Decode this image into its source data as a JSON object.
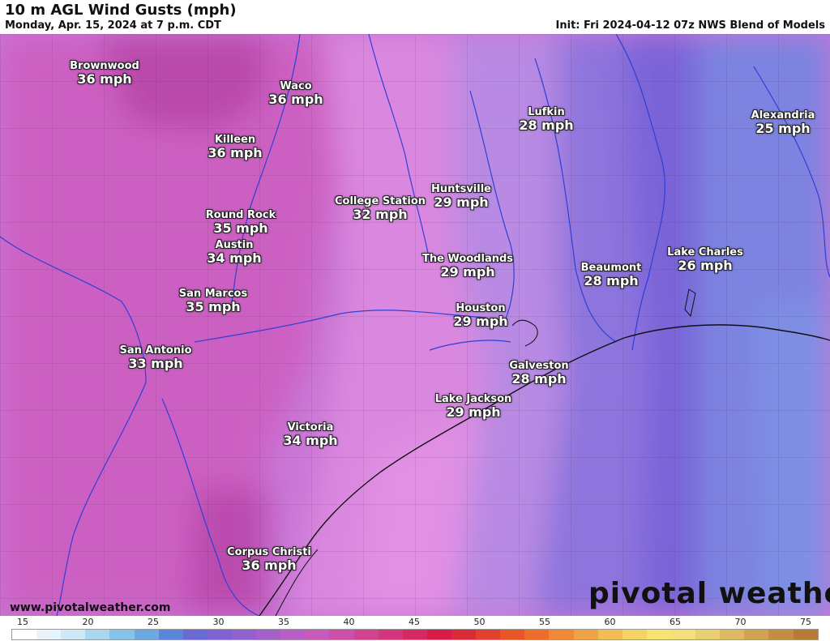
{
  "header": {
    "title": "10 m AGL Wind Gusts (mph)",
    "subtitle": "Monday, Apr. 15, 2024 at 7 p.m. CDT",
    "init": "Init: Fri 2024-04-12 07z NWS Blend of Models"
  },
  "cities": [
    {
      "name": "Brownwood",
      "value": "36 mph"
    },
    {
      "name": "Waco",
      "value": "36 mph"
    },
    {
      "name": "Killeen",
      "value": "36 mph"
    },
    {
      "name": "Lufkin",
      "value": "28 mph"
    },
    {
      "name": "Alexandria",
      "value": "25 mph"
    },
    {
      "name": "College Station",
      "value": "32 mph"
    },
    {
      "name": "Huntsville",
      "value": "29 mph"
    },
    {
      "name": "Round Rock",
      "value": "35 mph"
    },
    {
      "name": "Austin",
      "value": "34 mph"
    },
    {
      "name": "The Woodlands",
      "value": "29 mph"
    },
    {
      "name": "Lake Charles",
      "value": "26 mph"
    },
    {
      "name": "Beaumont",
      "value": "28 mph"
    },
    {
      "name": "San Marcos",
      "value": "35 mph"
    },
    {
      "name": "Houston",
      "value": "29 mph"
    },
    {
      "name": "San Antonio",
      "value": "33 mph"
    },
    {
      "name": "Galveston",
      "value": "28 mph"
    },
    {
      "name": "Lake Jackson",
      "value": "29 mph"
    },
    {
      "name": "Victoria",
      "value": "34 mph"
    },
    {
      "name": "Corpus Christi",
      "value": "36 mph"
    }
  ],
  "footer": {
    "website": "www.pivotalweather.com",
    "brand": "pivotal weather"
  },
  "colorbar": {
    "ticks": [
      "15",
      "20",
      "25",
      "30",
      "35",
      "40",
      "45",
      "50",
      "55",
      "60",
      "65",
      "70",
      "75"
    ],
    "colors": [
      "#ffffff",
      "#e8f4fb",
      "#cde8f6",
      "#a9d7f1",
      "#85c3eb",
      "#6aa9e2",
      "#5b86d8",
      "#6a6ad4",
      "#8062d2",
      "#9360cf",
      "#a660cc",
      "#b95ec6",
      "#c65bbd",
      "#cc4fa9",
      "#d14293",
      "#d4357c",
      "#d72862",
      "#d81c48",
      "#dc2a36",
      "#e23f2d",
      "#e85628",
      "#ee6d2c",
      "#f08838",
      "#f2a246",
      "#f4bc55",
      "#f6d264",
      "#f7e272",
      "#f3e07a",
      "#e8cf70",
      "#dcb962",
      "#d0a352",
      "#c48d42",
      "#b87a36"
    ]
  }
}
